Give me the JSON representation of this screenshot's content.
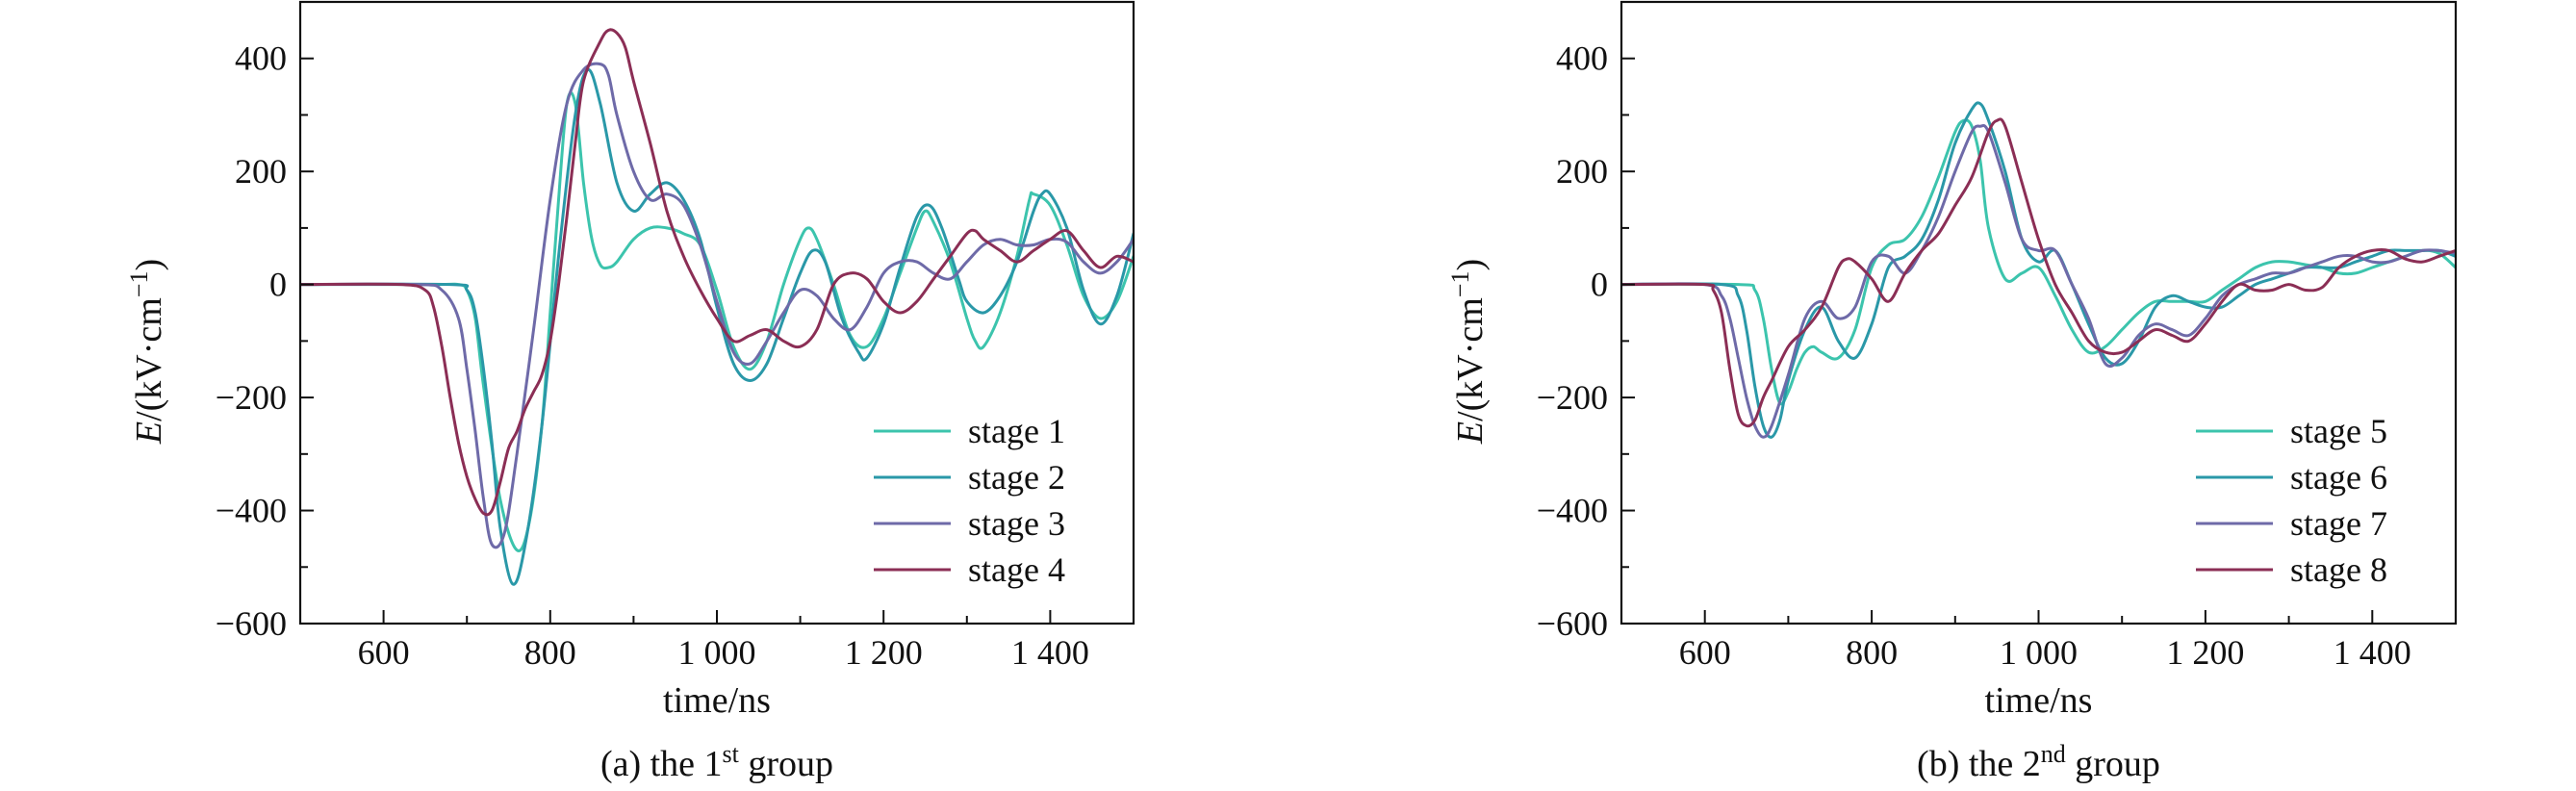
{
  "colors": {
    "stage1": "#3cc4ad",
    "stage2": "#2a98a8",
    "stage3": "#6e6aa8",
    "stage4": "#8b2e55",
    "stage5": "#3cc4ad",
    "stage6": "#2a98a8",
    "stage7": "#6e6aa8",
    "stage8": "#8b2e55",
    "axis": "#111111"
  },
  "chart_data": [
    {
      "type": "line",
      "caption": {
        "prefix": "(a) the 1",
        "sup": "st",
        "suffix": " group"
      },
      "xlabel": "time/ns",
      "ylabel": {
        "italic": "E",
        "text": "/(kV·cm",
        "sup": "−1",
        "close": ")"
      },
      "xlim": [
        500,
        1500
      ],
      "ylim": [
        -600,
        500
      ],
      "xticks": [
        600,
        800,
        1000,
        1200,
        1400
      ],
      "xtick_labels": [
        "600",
        "800",
        "1 000",
        "1 200",
        "1 400"
      ],
      "yticks": [
        -600,
        -400,
        -200,
        0,
        200,
        400
      ],
      "ytick_labels": [
        "−600",
        "−400",
        "−200",
        "0",
        "200",
        "400"
      ],
      "legend_position": "lower-right",
      "series": [
        {
          "name": "stage 1",
          "color": "#3cc4ad",
          "x": [
            500,
            660,
            690,
            700,
            710,
            720,
            740,
            760,
            775,
            790,
            800,
            810,
            820,
            830,
            840,
            850,
            860,
            870,
            880,
            900,
            920,
            940,
            960,
            980,
            1000,
            1020,
            1040,
            1060,
            1080,
            1100,
            1110,
            1120,
            1140,
            1160,
            1180,
            1200,
            1220,
            1240,
            1250,
            1260,
            1280,
            1300,
            1310,
            1320,
            1340,
            1360,
            1375,
            1380,
            1400,
            1420,
            1440,
            1460,
            1480,
            1500
          ],
          "y": [
            0,
            0,
            0,
            -10,
            -60,
            -180,
            -380,
            -470,
            -420,
            -250,
            -50,
            150,
            320,
            320,
            180,
            80,
            35,
            30,
            40,
            80,
            100,
            100,
            90,
            70,
            -10,
            -110,
            -150,
            -100,
            0,
            80,
            100,
            80,
            0,
            -90,
            -110,
            -60,
            20,
            100,
            130,
            110,
            40,
            -60,
            -100,
            -110,
            -50,
            50,
            150,
            160,
            140,
            70,
            -20,
            -60,
            -30,
            50
          ]
        },
        {
          "name": "stage 2",
          "color": "#2a98a8",
          "x": [
            500,
            680,
            700,
            710,
            720,
            730,
            740,
            755,
            770,
            790,
            810,
            830,
            845,
            860,
            880,
            900,
            920,
            940,
            960,
            980,
            1000,
            1020,
            1040,
            1060,
            1080,
            1100,
            1115,
            1130,
            1150,
            1170,
            1180,
            1200,
            1220,
            1240,
            1255,
            1270,
            1290,
            1300,
            1320,
            1340,
            1360,
            1380,
            1390,
            1400,
            1420,
            1440,
            1460,
            1480,
            1500
          ],
          "y": [
            0,
            0,
            -10,
            -50,
            -150,
            -280,
            -430,
            -530,
            -460,
            -250,
            50,
            300,
            380,
            320,
            180,
            130,
            160,
            180,
            150,
            80,
            -40,
            -140,
            -170,
            -140,
            -60,
            20,
            60,
            40,
            -60,
            -120,
            -130,
            -70,
            30,
            120,
            140,
            100,
            10,
            -30,
            -50,
            -20,
            40,
            130,
            160,
            160,
            100,
            -10,
            -70,
            -20,
            90
          ]
        },
        {
          "name": "stage 3",
          "color": "#6e6aa8",
          "x": [
            500,
            640,
            670,
            690,
            700,
            710,
            720,
            730,
            745,
            760,
            780,
            800,
            820,
            840,
            860,
            870,
            880,
            900,
            920,
            940,
            960,
            980,
            1000,
            1020,
            1040,
            1060,
            1080,
            1100,
            1120,
            1140,
            1160,
            1180,
            1200,
            1220,
            1240,
            1260,
            1280,
            1300,
            1320,
            1340,
            1360,
            1380,
            1400,
            1420,
            1440,
            1460,
            1480,
            1500
          ],
          "y": [
            0,
            0,
            -10,
            -60,
            -150,
            -260,
            -380,
            -460,
            -440,
            -300,
            -80,
            150,
            320,
            380,
            390,
            370,
            300,
            200,
            150,
            160,
            140,
            70,
            -30,
            -120,
            -140,
            -100,
            -50,
            -10,
            -20,
            -60,
            -80,
            -40,
            20,
            40,
            40,
            20,
            10,
            40,
            70,
            80,
            70,
            70,
            80,
            75,
            40,
            20,
            40,
            80
          ]
        },
        {
          "name": "stage 4",
          "color": "#8b2e55",
          "x": [
            500,
            620,
            650,
            660,
            670,
            680,
            690,
            700,
            710,
            720,
            730,
            740,
            750,
            760,
            770,
            780,
            790,
            800,
            810,
            820,
            830,
            840,
            860,
            870,
            880,
            890,
            900,
            920,
            940,
            960,
            980,
            1000,
            1020,
            1040,
            1060,
            1080,
            1100,
            1120,
            1140,
            1160,
            1180,
            1200,
            1220,
            1240,
            1260,
            1280,
            1300,
            1310,
            1320,
            1340,
            1360,
            1380,
            1400,
            1420,
            1440,
            1460,
            1480,
            1500
          ],
          "y": [
            0,
            0,
            -10,
            -40,
            -110,
            -200,
            -280,
            -340,
            -380,
            -405,
            -400,
            -350,
            -290,
            -260,
            -220,
            -190,
            -160,
            -100,
            0,
            120,
            250,
            360,
            430,
            450,
            445,
            420,
            360,
            250,
            130,
            50,
            -10,
            -60,
            -100,
            -90,
            -80,
            -100,
            -110,
            -80,
            0,
            20,
            10,
            -30,
            -50,
            -30,
            10,
            50,
            90,
            95,
            80,
            60,
            40,
            60,
            80,
            95,
            60,
            30,
            50,
            40
          ]
        }
      ]
    },
    {
      "type": "line",
      "caption": {
        "prefix": "(b) the 2",
        "sup": "nd",
        "suffix": " group"
      },
      "xlabel": "time/ns",
      "ylabel": {
        "italic": "E",
        "text": "/(kV·cm",
        "sup": "−1",
        "close": ")"
      },
      "xlim": [
        500,
        1500
      ],
      "ylim": [
        -600,
        500
      ],
      "xticks": [
        600,
        800,
        1000,
        1200,
        1400
      ],
      "xtick_labels": [
        "600",
        "800",
        "1 000",
        "1 200",
        "1 400"
      ],
      "yticks": [
        -600,
        -400,
        -200,
        0,
        200,
        400
      ],
      "ytick_labels": [
        "−600",
        "−400",
        "−200",
        "0",
        "200",
        "400"
      ],
      "legend_position": "lower-right",
      "series": [
        {
          "name": "stage 5",
          "color": "#3cc4ad",
          "x": [
            500,
            640,
            660,
            670,
            680,
            690,
            700,
            710,
            720,
            730,
            740,
            760,
            780,
            800,
            820,
            840,
            860,
            880,
            900,
            910,
            920,
            930,
            940,
            960,
            980,
            1000,
            1020,
            1040,
            1060,
            1080,
            1100,
            1120,
            1140,
            1160,
            1180,
            1200,
            1220,
            1240,
            1260,
            1280,
            1300,
            1320,
            1340,
            1360,
            1380,
            1400,
            1420,
            1440,
            1460,
            1480,
            1500
          ],
          "y": [
            0,
            0,
            -10,
            -60,
            -150,
            -210,
            -190,
            -150,
            -120,
            -110,
            -120,
            -130,
            -80,
            30,
            70,
            80,
            120,
            190,
            270,
            290,
            280,
            220,
            100,
            10,
            20,
            30,
            -20,
            -80,
            -120,
            -110,
            -80,
            -50,
            -30,
            -30,
            -30,
            -30,
            -10,
            10,
            30,
            40,
            40,
            35,
            30,
            20,
            20,
            30,
            40,
            50,
            60,
            55,
            30
          ]
        },
        {
          "name": "stage 6",
          "color": "#2a98a8",
          "x": [
            500,
            620,
            640,
            650,
            660,
            670,
            680,
            690,
            700,
            720,
            740,
            760,
            780,
            800,
            820,
            840,
            860,
            880,
            900,
            920,
            930,
            940,
            960,
            980,
            1000,
            1020,
            1040,
            1060,
            1080,
            1100,
            1120,
            1140,
            1160,
            1180,
            1200,
            1220,
            1240,
            1260,
            1280,
            1300,
            1320,
            1340,
            1360,
            1380,
            1400,
            1420,
            1440,
            1460,
            1480,
            1500
          ],
          "y": [
            0,
            0,
            -20,
            -80,
            -180,
            -250,
            -270,
            -240,
            -170,
            -80,
            -40,
            -100,
            -130,
            -70,
            30,
            50,
            80,
            150,
            250,
            310,
            320,
            290,
            200,
            80,
            40,
            60,
            0,
            -70,
            -130,
            -140,
            -100,
            -40,
            -20,
            -30,
            -40,
            -40,
            -20,
            0,
            10,
            20,
            30,
            30,
            30,
            40,
            50,
            60,
            60,
            60,
            60,
            50
          ]
        },
        {
          "name": "stage 7",
          "color": "#6e6aa8",
          "x": [
            500,
            600,
            620,
            630,
            640,
            650,
            660,
            670,
            680,
            700,
            720,
            740,
            760,
            780,
            800,
            820,
            840,
            860,
            880,
            900,
            920,
            930,
            940,
            960,
            980,
            1000,
            1020,
            1040,
            1060,
            1080,
            1100,
            1120,
            1140,
            1160,
            1180,
            1200,
            1220,
            1240,
            1260,
            1280,
            1300,
            1320,
            1340,
            1360,
            1380,
            1400,
            1420,
            1440,
            1460,
            1480,
            1500
          ],
          "y": [
            0,
            0,
            -20,
            -60,
            -130,
            -200,
            -250,
            -270,
            -250,
            -160,
            -60,
            -30,
            -60,
            -40,
            40,
            50,
            20,
            60,
            120,
            200,
            270,
            280,
            270,
            180,
            80,
            60,
            60,
            0,
            -60,
            -140,
            -130,
            -90,
            -70,
            -80,
            -90,
            -60,
            -20,
            0,
            10,
            20,
            20,
            30,
            40,
            50,
            50,
            40,
            40,
            50,
            60,
            60,
            55
          ]
        },
        {
          "name": "stage 8",
          "color": "#8b2e55",
          "x": [
            500,
            600,
            610,
            620,
            630,
            640,
            650,
            660,
            670,
            680,
            700,
            720,
            740,
            760,
            770,
            780,
            800,
            820,
            840,
            860,
            880,
            900,
            920,
            940,
            950,
            960,
            980,
            1000,
            1020,
            1040,
            1060,
            1080,
            1100,
            1120,
            1140,
            1160,
            1180,
            1200,
            1220,
            1240,
            1260,
            1280,
            1300,
            1320,
            1340,
            1360,
            1380,
            1400,
            1420,
            1440,
            1460,
            1480,
            1500
          ],
          "y": [
            0,
            0,
            -10,
            -50,
            -150,
            -230,
            -250,
            -240,
            -200,
            -170,
            -110,
            -80,
            -40,
            30,
            45,
            40,
            10,
            -30,
            20,
            60,
            90,
            140,
            190,
            270,
            290,
            280,
            180,
            80,
            0,
            -50,
            -100,
            -120,
            -120,
            -100,
            -80,
            -90,
            -100,
            -70,
            -30,
            0,
            -10,
            -10,
            0,
            -10,
            -5,
            30,
            50,
            60,
            60,
            45,
            40,
            50,
            60
          ]
        }
      ]
    }
  ]
}
